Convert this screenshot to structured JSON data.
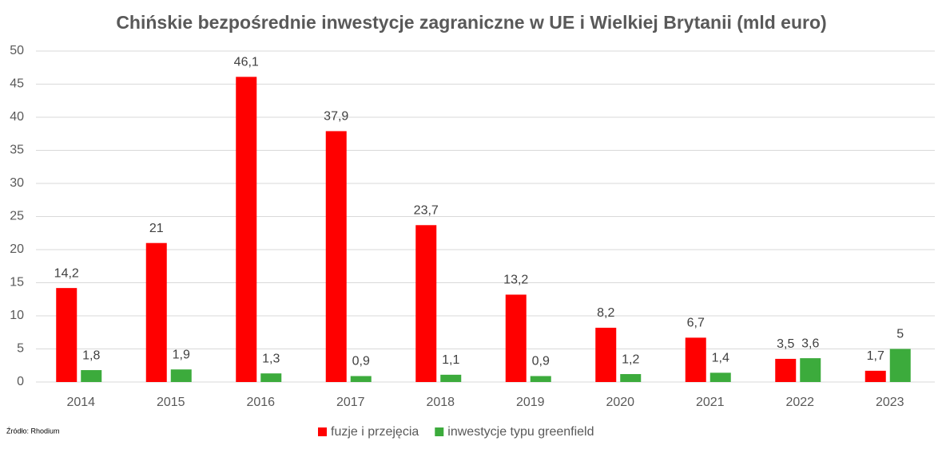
{
  "chart_data": {
    "type": "bar",
    "title": "Chińskie bezpośrednie inwestycje zagraniczne w UE i Wielkiej Brytanii (mld euro)",
    "categories": [
      "2014",
      "2015",
      "2016",
      "2017",
      "2018",
      "2019",
      "2020",
      "2021",
      "2022",
      "2023"
    ],
    "series": [
      {
        "name": "fuzje i przejęcia",
        "color": "#ff0000",
        "values": [
          14.2,
          21,
          46.1,
          37.9,
          23.7,
          13.2,
          8.2,
          6.7,
          3.5,
          1.7
        ],
        "value_labels": [
          "14,2",
          "21",
          "46,1",
          "37,9",
          "23,7",
          "13,2",
          "8,2",
          "6,7",
          "3,5",
          "1,7"
        ]
      },
      {
        "name": "inwestycje typu greenfield",
        "color": "#3cab3c",
        "values": [
          1.8,
          1.9,
          1.3,
          0.9,
          1.1,
          0.9,
          1.2,
          1.4,
          3.6,
          5
        ],
        "value_labels": [
          "1,8",
          "1,9",
          "1,3",
          "0,9",
          "1,1",
          "0,9",
          "1,2",
          "1,4",
          "3,6",
          "5"
        ]
      }
    ],
    "ylim": [
      0,
      50
    ],
    "yticks": [
      0,
      5,
      10,
      15,
      20,
      25,
      30,
      35,
      40,
      45,
      50
    ],
    "grid": true,
    "legend": "bottom",
    "source": "Źródło: Rhodium"
  }
}
